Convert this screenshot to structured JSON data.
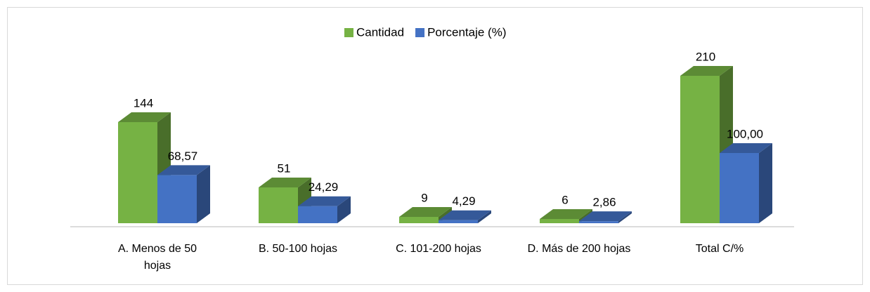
{
  "chart_data": {
    "type": "bar3d",
    "categories": [
      "A. Menos de 50 hojas",
      "B. 50-100 hojas",
      "C. 101-200 hojas",
      "D. Más de 200 hojas",
      "Total C/%"
    ],
    "series": [
      {
        "name": "Cantidad",
        "color": "#76b244",
        "values": [
          144,
          51,
          9,
          6,
          210
        ]
      },
      {
        "name": "Porcentaje (%)",
        "color": "#4472c4",
        "values": [
          68.57,
          24.29,
          4.29,
          2.86,
          100.0
        ],
        "value_labels": [
          "68,57",
          "24,29",
          "4,29",
          "2,86",
          "100,00"
        ]
      }
    ],
    "legend": "top"
  }
}
